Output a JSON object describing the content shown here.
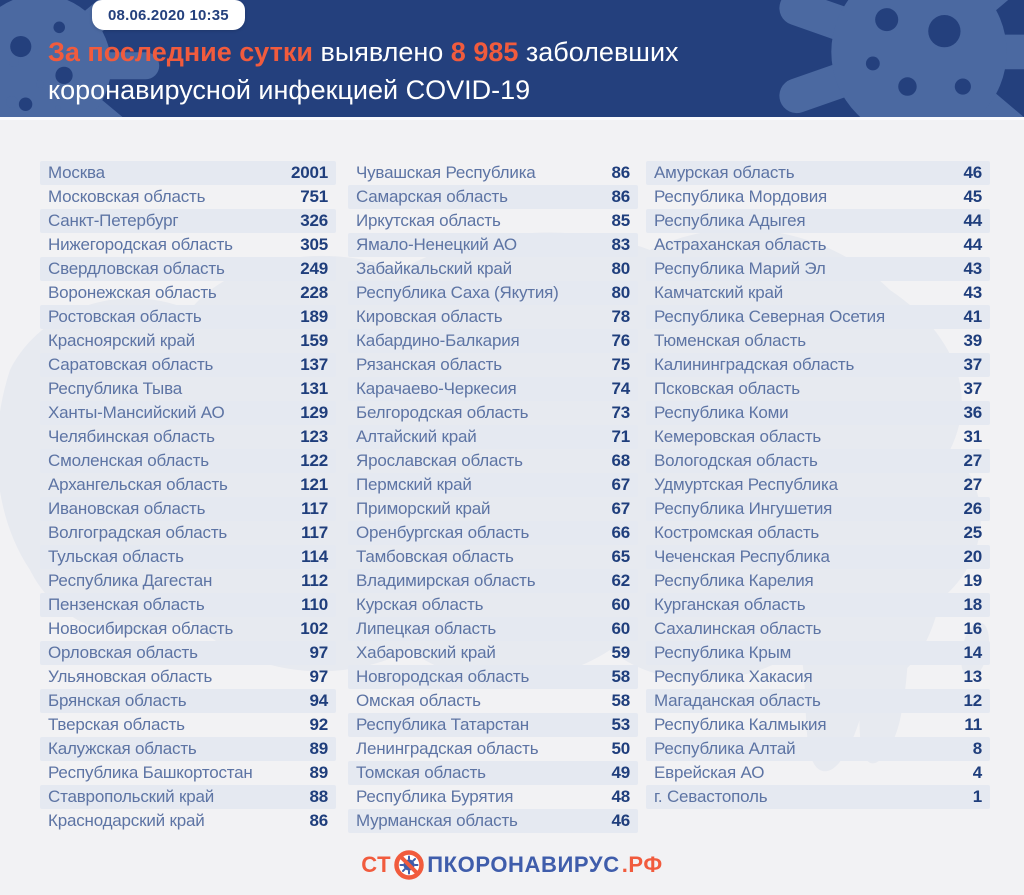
{
  "header": {
    "datetime": "08.06.2020 10:35",
    "title_highlight": "За последние сутки",
    "title_mid": "выявлено",
    "title_number": "8 985",
    "title_tail": "заболевших",
    "title_line2": "коронавирусной инфекцией COVID-19"
  },
  "chart_data": {
    "type": "table",
    "title": "За последние сутки выявлено 8 985 заболевших коронавирусной инфекцией COVID-19",
    "total_new_cases": 8985,
    "date": "08.06.2020 10:35",
    "columns": [
      {
        "rows": [
          [
            "Москва",
            2001
          ],
          [
            "Московская область",
            751
          ],
          [
            "Санкт-Петербург",
            326
          ],
          [
            "Нижегородская область",
            305
          ],
          [
            "Свердловская область",
            249
          ],
          [
            "Воронежская область",
            228
          ],
          [
            "Ростовская область",
            189
          ],
          [
            "Красноярский край",
            159
          ],
          [
            "Саратовская область",
            137
          ],
          [
            "Республика Тыва",
            131
          ],
          [
            "Ханты-Мансийский АО",
            129
          ],
          [
            "Челябинская область",
            123
          ],
          [
            "Смоленская область",
            122
          ],
          [
            "Архангельская область",
            121
          ],
          [
            "Ивановская область",
            117
          ],
          [
            "Волгоградская область",
            117
          ],
          [
            "Тульская область",
            114
          ],
          [
            "Республика Дагестан",
            112
          ],
          [
            "Пензенская область",
            110
          ],
          [
            "Новосибирская область",
            102
          ],
          [
            "Орловская область",
            97
          ],
          [
            "Ульяновская область",
            97
          ],
          [
            "Брянская область",
            94
          ],
          [
            "Тверская область",
            92
          ],
          [
            "Калужская область",
            89
          ],
          [
            "Республика Башкортостан",
            89
          ],
          [
            "Ставропольский край",
            88
          ],
          [
            "Краснодарский край",
            86
          ]
        ]
      },
      {
        "rows": [
          [
            "Чувашская Республика",
            86
          ],
          [
            "Самарская область",
            86
          ],
          [
            "Иркутская область",
            85
          ],
          [
            "Ямало-Ненецкий АО",
            83
          ],
          [
            "Забайкальский край",
            80
          ],
          [
            "Республика Саха (Якутия)",
            80
          ],
          [
            "Кировская область",
            78
          ],
          [
            "Кабардино-Балкария",
            76
          ],
          [
            "Рязанская область",
            75
          ],
          [
            "Карачаево-Черкесия",
            74
          ],
          [
            "Белгородская область",
            73
          ],
          [
            "Алтайский край",
            71
          ],
          [
            "Ярославская область",
            68
          ],
          [
            "Пермский край",
            67
          ],
          [
            "Приморский край",
            67
          ],
          [
            "Оренбургская область",
            66
          ],
          [
            "Тамбовская область",
            65
          ],
          [
            "Владимирская область",
            62
          ],
          [
            "Курская область",
            60
          ],
          [
            "Липецкая область",
            60
          ],
          [
            "Хабаровский край",
            59
          ],
          [
            "Новгородская область",
            58
          ],
          [
            "Омская область",
            58
          ],
          [
            "Республика Татарстан",
            53
          ],
          [
            "Ленинградская область",
            50
          ],
          [
            "Томская область",
            49
          ],
          [
            "Республика Бурятия",
            48
          ],
          [
            "Мурманская область",
            46
          ]
        ]
      },
      {
        "rows": [
          [
            "Амурская область",
            46
          ],
          [
            "Республика Мордовия",
            45
          ],
          [
            "Республика Адыгея",
            44
          ],
          [
            "Астраханская область",
            44
          ],
          [
            "Республика Марий Эл",
            43
          ],
          [
            "Камчатский край",
            43
          ],
          [
            "Республика Северная Осетия",
            41
          ],
          [
            "Тюменская область",
            39
          ],
          [
            "Калининградская область",
            37
          ],
          [
            "Псковская область",
            37
          ],
          [
            "Республика Коми",
            36
          ],
          [
            "Кемеровская область",
            31
          ],
          [
            "Вологодская область",
            27
          ],
          [
            "Удмуртская Республика",
            27
          ],
          [
            "Республика Ингушетия",
            26
          ],
          [
            "Костромская область",
            25
          ],
          [
            "Чеченская Республика",
            20
          ],
          [
            "Республика Карелия",
            19
          ],
          [
            "Курганская область",
            18
          ],
          [
            "Сахалинская область",
            16
          ],
          [
            "Республика Крым",
            14
          ],
          [
            "Республика Хакасия",
            13
          ],
          [
            "Магаданская область",
            12
          ],
          [
            "Республика Калмыкия",
            11
          ],
          [
            "Республика Алтай",
            8
          ],
          [
            "Еврейская АО",
            4
          ],
          [
            "г. Севастополь",
            1
          ]
        ]
      }
    ]
  },
  "footer": {
    "logo_prefix": "СТ",
    "logo_icon": "no-virus-icon",
    "logo_main": "ПКОРОНАВИРУС",
    "logo_suffix": ".РФ"
  },
  "colors": {
    "header_bg": "#24407d",
    "header_blob": "#4b69a1",
    "accent_orange": "#f15b3d",
    "page_bg": "#f2f2f4",
    "stripe": "#e5e9f1",
    "map_silhouette": "#e1e5ee",
    "region_text": "#5d74a4",
    "value_text": "#1f3e7c",
    "logo_blue": "#3f5dab",
    "badge_bg": "#ffffff",
    "badge_text": "#24407d",
    "title_text": "#ffffff"
  }
}
